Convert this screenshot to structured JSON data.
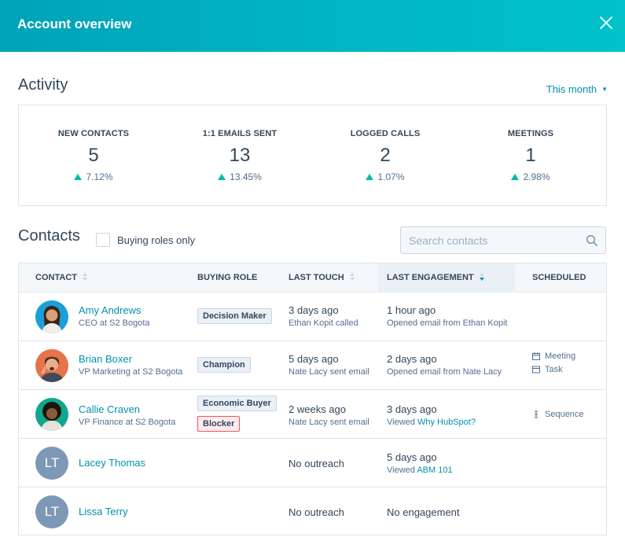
{
  "header": {
    "title": "Account overview"
  },
  "activity": {
    "title": "Activity",
    "period": "This month",
    "stats": [
      {
        "label": "NEW CONTACTS",
        "value": "5",
        "change": "7.12%"
      },
      {
        "label": "1:1 EMAILS SENT",
        "value": "13",
        "change": "13.45%"
      },
      {
        "label": "LOGGED CALLS",
        "value": "2",
        "change": "1.07%"
      },
      {
        "label": "MEETINGS",
        "value": "1",
        "change": "2.98%"
      }
    ]
  },
  "contacts": {
    "title": "Contacts",
    "filter_label": "Buying roles only",
    "search_placeholder": "Search contacts",
    "columns": [
      "CONTACT",
      "BUYING ROLE",
      "LAST TOUCH",
      "LAST ENGAGEMENT",
      "SCHEDULED"
    ],
    "rows": [
      {
        "name": "Amy Andrews",
        "title": "CEO at S2 Bogota",
        "roles": [
          "Decision Maker"
        ],
        "touch": "3 days ago",
        "touch_detail": "Ethan Kopit called",
        "engagement": "1 hour ago",
        "engagement_detail": "Opened email from Ethan Kopit",
        "engagement_link": "",
        "scheduled": []
      },
      {
        "name": "Brian Boxer",
        "title": "VP Marketing at S2 Bogota",
        "roles": [
          "Champion"
        ],
        "touch": "5 days ago",
        "touch_detail": "Nate Lacy sent email",
        "engagement": "2 days ago",
        "engagement_detail": "Opened email from Nate Lacy",
        "engagement_link": "",
        "scheduled": [
          "Meeting",
          "Task"
        ]
      },
      {
        "name": "Callie Craven",
        "title": "VP Finance at S2 Bogota",
        "roles": [
          "Economic Buyer",
          "Blocker"
        ],
        "touch": "2 weeks ago",
        "touch_detail": "Nate Lacy sent email",
        "engagement": "3 days ago",
        "engagement_detail": "Viewed",
        "engagement_link": "Why HubSpot?",
        "scheduled": [
          "Sequence"
        ]
      },
      {
        "name": "Lacey Thomas",
        "initials": "LT",
        "touch": "No outreach",
        "engagement": "5 days ago",
        "engagement_detail": "Viewed",
        "engagement_link": "ABM 101"
      },
      {
        "name": "Lissa Terry",
        "initials": "LT",
        "touch": "No outreach",
        "engagement": "No engagement"
      }
    ]
  },
  "colors": {
    "header_start": "#00a3b8",
    "header_end": "#00c2c9",
    "link": "#0091ae",
    "up_arrow": "#00bda5",
    "blocker": "#f2545b"
  }
}
